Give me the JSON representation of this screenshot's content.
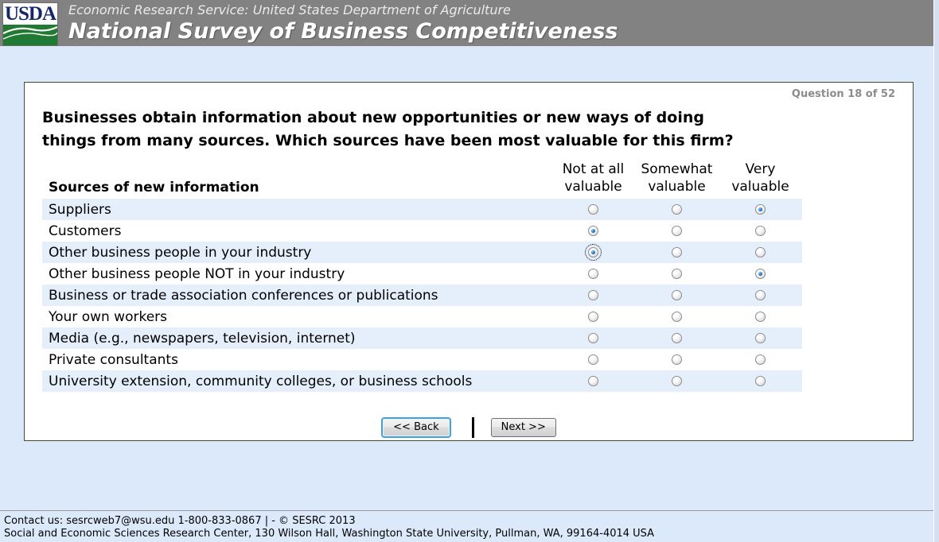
{
  "header": {
    "logo_text": "USDA",
    "agency_line": "Economic Research Service: United States Department of Agriculture",
    "survey_title": "National Survey of Business Competitiveness"
  },
  "question": {
    "counter": "Question 18 of 52",
    "text_line1": "Businesses obtain information about new opportunities or new ways of doing",
    "text_line2": "things from many sources. Which sources have been most valuable for this firm?"
  },
  "table": {
    "row_header": "Sources of new information",
    "columns": [
      "Not at all valuable",
      "Somewhat valuable",
      "Very valuable"
    ],
    "rows": [
      {
        "label": "Suppliers",
        "selected": 2,
        "focused": false
      },
      {
        "label": "Customers",
        "selected": 0,
        "focused": false
      },
      {
        "label": "Other business people in your industry",
        "selected": 0,
        "focused": true
      },
      {
        "label": "Other business people NOT in your industry",
        "selected": 2,
        "focused": false
      },
      {
        "label": "Business or trade association conferences or publications",
        "selected": null,
        "focused": false
      },
      {
        "label": "Your own workers",
        "selected": null,
        "focused": false
      },
      {
        "label": "Media (e.g., newspapers, television, internet)",
        "selected": null,
        "focused": false
      },
      {
        "label": "Private consultants",
        "selected": null,
        "focused": false
      },
      {
        "label": "University extension, community colleges, or business schools",
        "selected": null,
        "focused": false
      }
    ]
  },
  "buttons": {
    "back_label": "<< Back",
    "next_label": "Next >>"
  },
  "footer": {
    "line1": "Contact us: sesrcweb7@wsu.edu 1-800-833-0867 | - © SESRC 2013",
    "line2": "Social and Economic Sciences Research Center, 130 Wilson Hall, Washington State University, Pullman, WA, 99164-4014 USA"
  },
  "colors": {
    "header_bg": "#828282",
    "page_bg": "#dce9fa",
    "row_stripe": "#e5eefb",
    "box_border": "#41502a",
    "logo_navy": "#16266c",
    "logo_green": "#207a33",
    "radio_dot_blue": "#2470bd",
    "back_button_border_blue": "#41a1dc"
  }
}
